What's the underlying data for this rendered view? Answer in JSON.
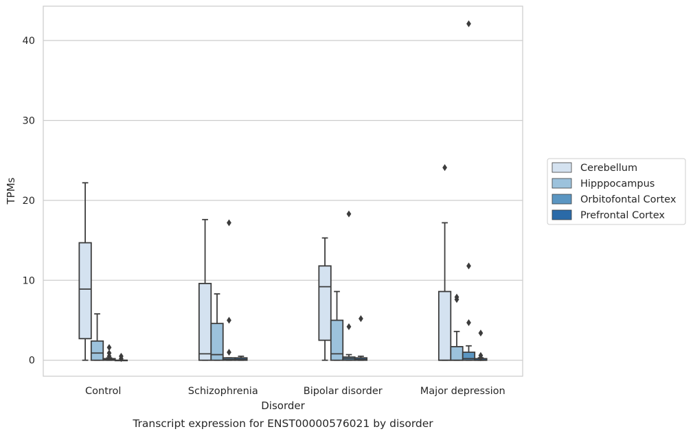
{
  "chart_data": {
    "type": "boxplot",
    "caption": "Transcript expression for ENST00000576021 by disorder",
    "xlabel": "Disorder",
    "ylabel": "TPMs",
    "ylim": [
      -2,
      44.3
    ],
    "yticks": [
      0,
      10,
      20,
      30,
      40
    ],
    "grid": "horizontal",
    "legend_position": "right-center",
    "categories": [
      "Control",
      "Schizophrenia",
      "Bipolar disorder",
      "Major depression"
    ],
    "series": [
      {
        "name": "Cerebellum",
        "color": "#d4e2f0",
        "boxes": [
          {
            "whislo": 0,
            "q1": 2.7,
            "med": 8.9,
            "q3": 14.7,
            "whishi": 22.2,
            "fliers": []
          },
          {
            "whislo": 0,
            "q1": 0,
            "med": 0.8,
            "q3": 9.6,
            "whishi": 17.6,
            "fliers": []
          },
          {
            "whislo": 0,
            "q1": 2.5,
            "med": 9.2,
            "q3": 11.8,
            "whishi": 15.3,
            "fliers": []
          },
          {
            "whislo": 0,
            "q1": 0,
            "med": 0,
            "q3": 8.6,
            "whishi": 17.2,
            "fliers": [
              24.1
            ]
          }
        ]
      },
      {
        "name": "Hipppocampus",
        "color": "#9cc2dc",
        "boxes": [
          {
            "whislo": 0,
            "q1": 0,
            "med": 0.9,
            "q3": 2.4,
            "whishi": 5.8,
            "fliers": []
          },
          {
            "whislo": 0,
            "q1": 0,
            "med": 0.7,
            "q3": 4.6,
            "whishi": 8.3,
            "fliers": []
          },
          {
            "whislo": 0,
            "q1": 0,
            "med": 0.8,
            "q3": 5.0,
            "whishi": 8.6,
            "fliers": []
          },
          {
            "whislo": 0,
            "q1": 0,
            "med": 0,
            "q3": 1.7,
            "whishi": 3.6,
            "fliers": [
              7.6,
              7.9
            ]
          }
        ]
      },
      {
        "name": "Orbitofontal Cortex",
        "color": "#5b96c2",
        "boxes": [
          {
            "whislo": 0,
            "q1": 0,
            "med": 0.1,
            "q3": 0.2,
            "whishi": 0.3,
            "fliers": [
              0.5,
              0.9,
              1.6
            ]
          },
          {
            "whislo": 0,
            "q1": 0,
            "med": 0.1,
            "q3": 0.3,
            "whishi": 0.3,
            "fliers": [
              1.0,
              5.0,
              17.2
            ]
          },
          {
            "whislo": 0,
            "q1": 0,
            "med": 0.2,
            "q3": 0.4,
            "whishi": 0.7,
            "fliers": [
              4.2,
              18.3
            ]
          },
          {
            "whislo": 0,
            "q1": 0,
            "med": 0.2,
            "q3": 1.0,
            "whishi": 1.8,
            "fliers": [
              4.7,
              11.8,
              42.1
            ]
          }
        ]
      },
      {
        "name": "Prefrontal Cortex",
        "color": "#2a6aa8",
        "boxes": [
          {
            "whislo": 0,
            "q1": 0,
            "med": 0,
            "q3": 0,
            "whishi": 0,
            "fliers": [
              0.2,
              0.5
            ]
          },
          {
            "whislo": 0,
            "q1": 0,
            "med": 0.1,
            "q3": 0.3,
            "whishi": 0.5,
            "fliers": []
          },
          {
            "whislo": 0,
            "q1": 0,
            "med": 0.1,
            "q3": 0.3,
            "whishi": 0.5,
            "fliers": [
              5.2
            ]
          },
          {
            "whislo": 0,
            "q1": 0,
            "med": 0,
            "q3": 0.2,
            "whishi": 0.3,
            "fliers": [
              0.3,
              0.6,
              3.4
            ]
          }
        ]
      }
    ]
  }
}
